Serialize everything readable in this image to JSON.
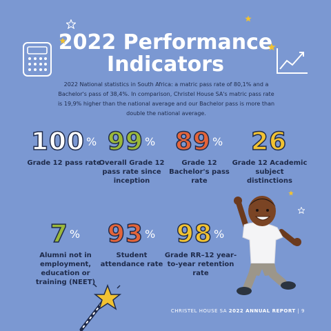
{
  "header": {
    "title_line1": "2022 Performance",
    "title_line2": "Indicators"
  },
  "intro": {
    "text": "2022 National statistics in South Africa: a matric pass rate of 80,1% and a Bachelor's pass of 38,4%. In comparison, Christel House SA's matric pass rate is 19,9% higher than the national average and our Bachelor pass is more than double the national average."
  },
  "stats": [
    {
      "value": "100",
      "unit": "%",
      "label": "Grade 12 pass rate"
    },
    {
      "value": "99",
      "unit": "%",
      "label": "Overall Grade 12 pass rate since inception"
    },
    {
      "value": "89",
      "unit": "%",
      "label": "Grade 12 Bachelor's pass rate"
    },
    {
      "value": "26",
      "unit": "",
      "label": "Grade 12 Academic subject distinctions"
    },
    {
      "value": "7",
      "unit": "%",
      "label": "Alumni not in employment, education or training (NEET)"
    },
    {
      "value": "93",
      "unit": "%",
      "label": "Student attendance rate"
    },
    {
      "value": "98",
      "unit": "%",
      "label": "Grade RR–12 year-to-year retention rate"
    }
  ],
  "footer": {
    "prefix": "CHRISTEL HOUSE SA ",
    "report": "2022 ANNUAL REPORT",
    "separator": " | ",
    "page": "9"
  },
  "icons": [
    "star-icon",
    "calculator-icon",
    "growth-chart-icon",
    "magic-wand-icon",
    "jumping-child-illustration"
  ],
  "colors": {
    "background": "#7b98d2",
    "yellow": "#f1c232",
    "green": "#9bb83a",
    "red": "#e3643a",
    "navy": "#1e2a4a",
    "white": "#ffffff"
  }
}
